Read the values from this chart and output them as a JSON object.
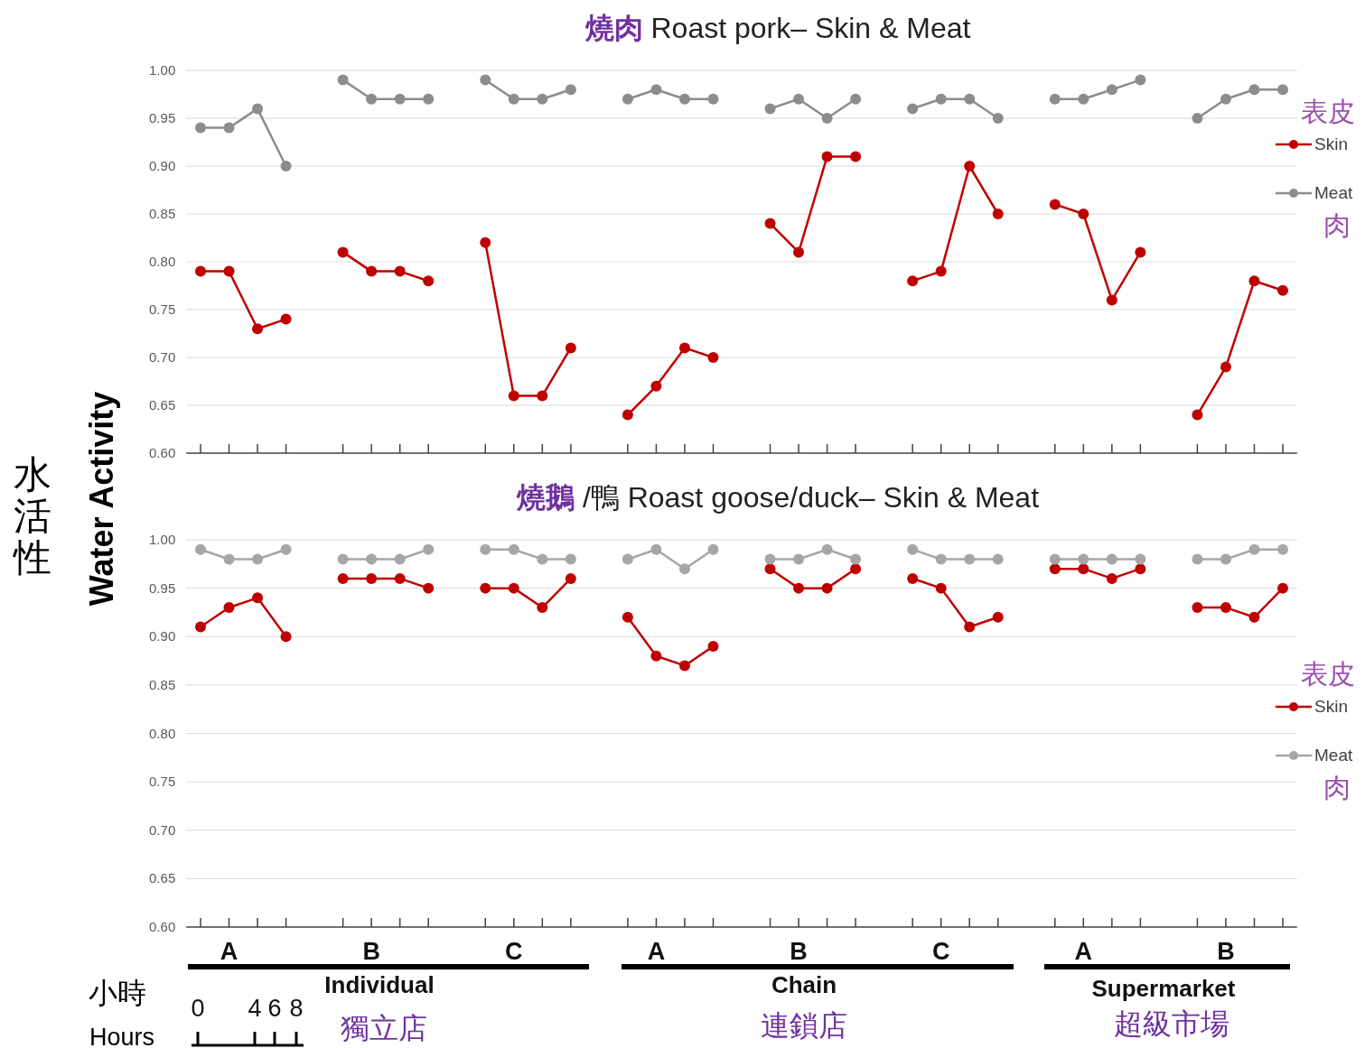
{
  "chart_data": [
    {
      "type": "line",
      "title": "燒肉 Roast pork– Skin & Meat",
      "ylabel": "Water Activity",
      "categories": [
        null,
        null,
        null,
        null,
        null,
        null,
        null,
        null,
        null,
        null,
        null,
        null,
        null,
        null,
        null,
        null,
        null,
        null,
        null,
        null,
        null,
        null,
        null,
        null,
        null,
        null,
        null,
        null,
        null,
        null,
        null,
        null,
        null,
        null,
        null,
        null,
        null,
        null,
        null
      ],
      "ylim": [
        0.6,
        1.0
      ],
      "yticks": [
        {
          "value": 0.6,
          "label": "0.60"
        },
        {
          "value": 0.65,
          "label": "0.65"
        },
        {
          "value": 0.7,
          "label": "0.70"
        },
        {
          "value": 0.75,
          "label": "0.75"
        },
        {
          "value": 0.8,
          "label": "0.80"
        },
        {
          "value": 0.85,
          "label": "0.85"
        },
        {
          "value": 0.9,
          "label": "0.90"
        },
        {
          "value": 0.95,
          "label": "0.95"
        },
        {
          "value": 1.0,
          "label": "1.00"
        }
      ],
      "grid": "y",
      "legend": "top right",
      "marker": "circle",
      "line_style": "solid",
      "series": [
        {
          "name": "Skin",
          "color": "#c00000",
          "values": [
            0.79,
            0.79,
            0.73,
            0.74,
            null,
            null,
            null,
            null,
            null,
            null,
            null,
            null,
            null,
            null,
            null,
            null,
            null,
            null,
            null,
            null,
            null,
            null,
            null,
            null,
            null,
            null,
            null,
            null,
            null,
            null,
            null,
            null,
            null,
            null,
            null,
            null,
            null,
            null,
            null
          ]
        },
        {
          "color": "#c00000",
          "values": [
            null,
            null,
            null,
            null,
            null,
            0.81,
            0.79,
            0.79,
            0.78,
            null,
            null,
            null,
            null,
            null,
            null,
            null,
            null,
            null,
            null,
            null,
            null,
            null,
            null,
            null,
            null,
            null,
            null,
            null,
            null,
            null,
            null,
            null,
            null,
            null,
            null,
            null,
            null,
            null,
            null
          ]
        },
        {
          "color": "#c00000",
          "values": [
            null,
            null,
            null,
            null,
            null,
            null,
            null,
            null,
            null,
            null,
            0.82,
            0.66,
            0.66,
            0.71,
            null,
            null,
            null,
            null,
            null,
            null,
            null,
            null,
            null,
            null,
            null,
            null,
            null,
            null,
            null,
            null,
            null,
            null,
            null,
            null,
            null,
            null,
            null,
            null,
            null
          ]
        },
        {
          "color": "#c00000",
          "values": [
            null,
            null,
            null,
            null,
            null,
            null,
            null,
            null,
            null,
            null,
            null,
            null,
            null,
            null,
            null,
            0.64,
            0.67,
            0.71,
            0.7,
            null,
            null,
            null,
            null,
            null,
            null,
            null,
            null,
            null,
            null,
            null,
            null,
            null,
            null,
            null,
            null,
            null,
            null,
            null,
            null
          ]
        },
        {
          "color": "#c00000",
          "values": [
            null,
            null,
            null,
            null,
            null,
            null,
            null,
            null,
            null,
            null,
            null,
            null,
            null,
            null,
            null,
            null,
            null,
            null,
            null,
            null,
            0.84,
            0.81,
            0.91,
            0.91,
            null,
            null,
            null,
            null,
            null,
            null,
            null,
            null,
            null,
            null,
            null,
            null,
            null,
            null,
            null
          ]
        },
        {
          "color": "#c00000",
          "values": [
            null,
            null,
            null,
            null,
            null,
            null,
            null,
            null,
            null,
            null,
            null,
            null,
            null,
            null,
            null,
            null,
            null,
            null,
            null,
            null,
            null,
            null,
            null,
            null,
            null,
            0.78,
            0.79,
            0.9,
            0.85,
            null,
            null,
            null,
            null,
            null,
            null,
            null,
            null,
            null,
            null
          ]
        },
        {
          "color": "#c00000",
          "values": [
            null,
            null,
            null,
            null,
            null,
            null,
            null,
            null,
            null,
            null,
            null,
            null,
            null,
            null,
            null,
            null,
            null,
            null,
            null,
            null,
            null,
            null,
            null,
            null,
            null,
            null,
            null,
            null,
            null,
            null,
            0.86,
            0.85,
            0.76,
            0.81,
            null,
            null,
            null,
            null,
            null
          ]
        },
        {
          "color": "#c00000",
          "values": [
            null,
            null,
            null,
            null,
            null,
            null,
            null,
            null,
            null,
            null,
            null,
            null,
            null,
            null,
            null,
            null,
            null,
            null,
            null,
            null,
            null,
            null,
            null,
            null,
            null,
            null,
            null,
            null,
            null,
            null,
            null,
            null,
            null,
            null,
            null,
            0.64,
            0.69,
            0.78,
            0.77
          ]
        },
        {
          "name": "Meat",
          "color": "#8c8c8c",
          "values": [
            0.94,
            0.94,
            0.96,
            0.9,
            null,
            null,
            null,
            null,
            null,
            null,
            null,
            null,
            null,
            null,
            null,
            null,
            null,
            null,
            null,
            null,
            null,
            null,
            null,
            null,
            null,
            null,
            null,
            null,
            null,
            null,
            null,
            null,
            null,
            null,
            null,
            null,
            null,
            null,
            null
          ]
        },
        {
          "color": "#8c8c8c",
          "values": [
            null,
            null,
            null,
            null,
            null,
            0.99,
            0.97,
            0.97,
            0.97,
            null,
            null,
            null,
            null,
            null,
            null,
            null,
            null,
            null,
            null,
            null,
            null,
            null,
            null,
            null,
            null,
            null,
            null,
            null,
            null,
            null,
            null,
            null,
            null,
            null,
            null,
            null,
            null,
            null,
            null
          ]
        },
        {
          "color": "#8c8c8c",
          "values": [
            null,
            null,
            null,
            null,
            null,
            null,
            null,
            null,
            null,
            null,
            0.99,
            0.97,
            0.97,
            0.98,
            null,
            null,
            null,
            null,
            null,
            null,
            null,
            null,
            null,
            null,
            null,
            null,
            null,
            null,
            null,
            null,
            null,
            null,
            null,
            null,
            null,
            null,
            null,
            null,
            null
          ]
        },
        {
          "color": "#8c8c8c",
          "values": [
            null,
            null,
            null,
            null,
            null,
            null,
            null,
            null,
            null,
            null,
            null,
            null,
            null,
            null,
            null,
            0.97,
            0.98,
            0.97,
            0.97,
            null,
            null,
            null,
            null,
            null,
            null,
            null,
            null,
            null,
            null,
            null,
            null,
            null,
            null,
            null,
            null,
            null,
            null,
            null,
            null
          ]
        },
        {
          "color": "#8c8c8c",
          "values": [
            null,
            null,
            null,
            null,
            null,
            null,
            null,
            null,
            null,
            null,
            null,
            null,
            null,
            null,
            null,
            null,
            null,
            null,
            null,
            null,
            0.96,
            0.97,
            0.95,
            0.97,
            null,
            null,
            null,
            null,
            null,
            null,
            null,
            null,
            null,
            null,
            null,
            null,
            null,
            null,
            null
          ]
        },
        {
          "color": "#8c8c8c",
          "values": [
            null,
            null,
            null,
            null,
            null,
            null,
            null,
            null,
            null,
            null,
            null,
            null,
            null,
            null,
            null,
            null,
            null,
            null,
            null,
            null,
            null,
            null,
            null,
            null,
            null,
            0.96,
            0.97,
            0.97,
            0.95,
            null,
            null,
            null,
            null,
            null,
            null,
            null,
            null,
            null,
            null
          ]
        },
        {
          "color": "#8c8c8c",
          "values": [
            null,
            null,
            null,
            null,
            null,
            null,
            null,
            null,
            null,
            null,
            null,
            null,
            null,
            null,
            null,
            null,
            null,
            null,
            null,
            null,
            null,
            null,
            null,
            null,
            null,
            null,
            null,
            null,
            null,
            null,
            0.97,
            0.97,
            0.98,
            0.99,
            null,
            null,
            null,
            null,
            null
          ]
        },
        {
          "color": "#8c8c8c",
          "values": [
            null,
            null,
            null,
            null,
            null,
            null,
            null,
            null,
            null,
            null,
            null,
            null,
            null,
            null,
            null,
            null,
            null,
            null,
            null,
            null,
            null,
            null,
            null,
            null,
            null,
            null,
            null,
            null,
            null,
            null,
            null,
            null,
            null,
            null,
            null,
            0.95,
            0.97,
            0.98,
            0.98
          ]
        }
      ],
      "annotations": [
        "表皮",
        "肉",
        "水活性"
      ]
    },
    {
      "type": "line",
      "title": "燒鵝 /鴨 Roast goose/duck– Skin & Meat",
      "categories": [
        null,
        "A",
        null,
        null,
        null,
        null,
        "B",
        null,
        null,
        null,
        null,
        "C",
        null,
        null,
        null,
        null,
        "A",
        null,
        null,
        null,
        null,
        "B",
        null,
        null,
        null,
        null,
        "C",
        null,
        null,
        null,
        null,
        "A",
        null,
        null,
        null,
        null,
        "B",
        null,
        null
      ],
      "ylim": [
        0.6,
        1.0
      ],
      "yticks": [
        {
          "value": 0.6,
          "label": "0.60"
        },
        {
          "value": 0.65,
          "label": "0.65"
        },
        {
          "value": 0.7,
          "label": "0.70"
        },
        {
          "value": 0.75,
          "label": "0.75"
        },
        {
          "value": 0.8,
          "label": "0.80"
        },
        {
          "value": 0.85,
          "label": "0.85"
        },
        {
          "value": 0.9,
          "label": "0.90"
        },
        {
          "value": 0.95,
          "label": "0.95"
        },
        {
          "value": 1.0,
          "label": "1.00"
        }
      ],
      "grid": "y",
      "legend": "right",
      "marker": "circle",
      "line_style": "solid",
      "series": [
        {
          "name": "Skin",
          "color": "#c00000",
          "values": [
            0.91,
            0.93,
            0.94,
            0.9,
            null,
            null,
            null,
            null,
            null,
            null,
            null,
            null,
            null,
            null,
            null,
            null,
            null,
            null,
            null,
            null,
            null,
            null,
            null,
            null,
            null,
            null,
            null,
            null,
            null,
            null,
            null,
            null,
            null,
            null,
            null,
            null,
            null,
            null,
            null
          ]
        },
        {
          "color": "#c00000",
          "values": [
            null,
            null,
            null,
            null,
            null,
            0.96,
            0.96,
            0.96,
            0.95,
            null,
            null,
            null,
            null,
            null,
            null,
            null,
            null,
            null,
            null,
            null,
            null,
            null,
            null,
            null,
            null,
            null,
            null,
            null,
            null,
            null,
            null,
            null,
            null,
            null,
            null,
            null,
            null,
            null,
            null
          ]
        },
        {
          "color": "#c00000",
          "values": [
            null,
            null,
            null,
            null,
            null,
            null,
            null,
            null,
            null,
            null,
            0.95,
            0.95,
            0.93,
            0.96,
            null,
            null,
            null,
            null,
            null,
            null,
            null,
            null,
            null,
            null,
            null,
            null,
            null,
            null,
            null,
            null,
            null,
            null,
            null,
            null,
            null,
            null,
            null,
            null,
            null
          ]
        },
        {
          "color": "#c00000",
          "values": [
            null,
            null,
            null,
            null,
            null,
            null,
            null,
            null,
            null,
            null,
            null,
            null,
            null,
            null,
            null,
            0.92,
            0.88,
            0.87,
            0.89,
            null,
            null,
            null,
            null,
            null,
            null,
            null,
            null,
            null,
            null,
            null,
            null,
            null,
            null,
            null,
            null,
            null,
            null,
            null,
            null
          ]
        },
        {
          "color": "#c00000",
          "values": [
            null,
            null,
            null,
            null,
            null,
            null,
            null,
            null,
            null,
            null,
            null,
            null,
            null,
            null,
            null,
            null,
            null,
            null,
            null,
            null,
            0.97,
            0.95,
            0.95,
            0.97,
            null,
            null,
            null,
            null,
            null,
            null,
            null,
            null,
            null,
            null,
            null,
            null,
            null,
            null,
            null
          ]
        },
        {
          "color": "#c00000",
          "values": [
            null,
            null,
            null,
            null,
            null,
            null,
            null,
            null,
            null,
            null,
            null,
            null,
            null,
            null,
            null,
            null,
            null,
            null,
            null,
            null,
            null,
            null,
            null,
            null,
            null,
            0.96,
            0.95,
            0.91,
            0.92,
            null,
            null,
            null,
            null,
            null,
            null,
            null,
            null,
            null,
            null
          ]
        },
        {
          "color": "#c00000",
          "values": [
            null,
            null,
            null,
            null,
            null,
            null,
            null,
            null,
            null,
            null,
            null,
            null,
            null,
            null,
            null,
            null,
            null,
            null,
            null,
            null,
            null,
            null,
            null,
            null,
            null,
            null,
            null,
            null,
            null,
            null,
            0.97,
            0.97,
            0.96,
            0.97,
            null,
            null,
            null,
            null,
            null
          ]
        },
        {
          "color": "#c00000",
          "values": [
            null,
            null,
            null,
            null,
            null,
            null,
            null,
            null,
            null,
            null,
            null,
            null,
            null,
            null,
            null,
            null,
            null,
            null,
            null,
            null,
            null,
            null,
            null,
            null,
            null,
            null,
            null,
            null,
            null,
            null,
            null,
            null,
            null,
            null,
            null,
            0.93,
            0.93,
            0.92,
            0.95
          ]
        },
        {
          "name": "Meat",
          "color": "#a6a6a6",
          "values": [
            0.99,
            0.98,
            0.98,
            0.99,
            null,
            null,
            null,
            null,
            null,
            null,
            null,
            null,
            null,
            null,
            null,
            null,
            null,
            null,
            null,
            null,
            null,
            null,
            null,
            null,
            null,
            null,
            null,
            null,
            null,
            null,
            null,
            null,
            null,
            null,
            null,
            null,
            null,
            null,
            null
          ]
        },
        {
          "color": "#a6a6a6",
          "values": [
            null,
            null,
            null,
            null,
            null,
            0.98,
            0.98,
            0.98,
            0.99,
            null,
            null,
            null,
            null,
            null,
            null,
            null,
            null,
            null,
            null,
            null,
            null,
            null,
            null,
            null,
            null,
            null,
            null,
            null,
            null,
            null,
            null,
            null,
            null,
            null,
            null,
            null,
            null,
            null,
            null
          ]
        },
        {
          "color": "#a6a6a6",
          "values": [
            null,
            null,
            null,
            null,
            null,
            null,
            null,
            null,
            null,
            null,
            0.99,
            0.99,
            0.98,
            0.98,
            null,
            null,
            null,
            null,
            null,
            null,
            null,
            null,
            null,
            null,
            null,
            null,
            null,
            null,
            null,
            null,
            null,
            null,
            null,
            null,
            null,
            null,
            null,
            null,
            null
          ]
        },
        {
          "color": "#a6a6a6",
          "values": [
            null,
            null,
            null,
            null,
            null,
            null,
            null,
            null,
            null,
            null,
            null,
            null,
            null,
            null,
            null,
            0.98,
            0.99,
            0.97,
            0.99,
            null,
            null,
            null,
            null,
            null,
            null,
            null,
            null,
            null,
            null,
            null,
            null,
            null,
            null,
            null,
            null,
            null,
            null,
            null,
            null
          ]
        },
        {
          "color": "#a6a6a6",
          "values": [
            null,
            null,
            null,
            null,
            null,
            null,
            null,
            null,
            null,
            null,
            null,
            null,
            null,
            null,
            null,
            null,
            null,
            null,
            null,
            null,
            0.98,
            0.98,
            0.99,
            0.98,
            null,
            null,
            null,
            null,
            null,
            null,
            null,
            null,
            null,
            null,
            null,
            null,
            null,
            null,
            null
          ]
        },
        {
          "color": "#a6a6a6",
          "values": [
            null,
            null,
            null,
            null,
            null,
            null,
            null,
            null,
            null,
            null,
            null,
            null,
            null,
            null,
            null,
            null,
            null,
            null,
            null,
            null,
            null,
            null,
            null,
            null,
            null,
            0.99,
            0.98,
            0.98,
            0.98,
            null,
            null,
            null,
            null,
            null,
            null,
            null,
            null,
            null,
            null
          ]
        },
        {
          "color": "#a6a6a6",
          "values": [
            null,
            null,
            null,
            null,
            null,
            null,
            null,
            null,
            null,
            null,
            null,
            null,
            null,
            null,
            null,
            null,
            null,
            null,
            null,
            null,
            null,
            null,
            null,
            null,
            null,
            null,
            null,
            null,
            null,
            null,
            0.98,
            0.98,
            0.98,
            0.98,
            null,
            null,
            null,
            null,
            null
          ]
        },
        {
          "color": "#a6a6a6",
          "values": [
            null,
            null,
            null,
            null,
            null,
            null,
            null,
            null,
            null,
            null,
            null,
            null,
            null,
            null,
            null,
            null,
            null,
            null,
            null,
            null,
            null,
            null,
            null,
            null,
            null,
            null,
            null,
            null,
            null,
            null,
            null,
            null,
            null,
            null,
            null,
            0.98,
            0.98,
            0.99,
            0.99
          ]
        }
      ],
      "annotations": [
        "表皮",
        "肉",
        "Individual",
        "獨立店",
        "Chain",
        "連鎖店",
        "Supermarket",
        "超級市場",
        "小時",
        "Hours",
        "0",
        "4",
        "6",
        "8"
      ]
    }
  ]
}
